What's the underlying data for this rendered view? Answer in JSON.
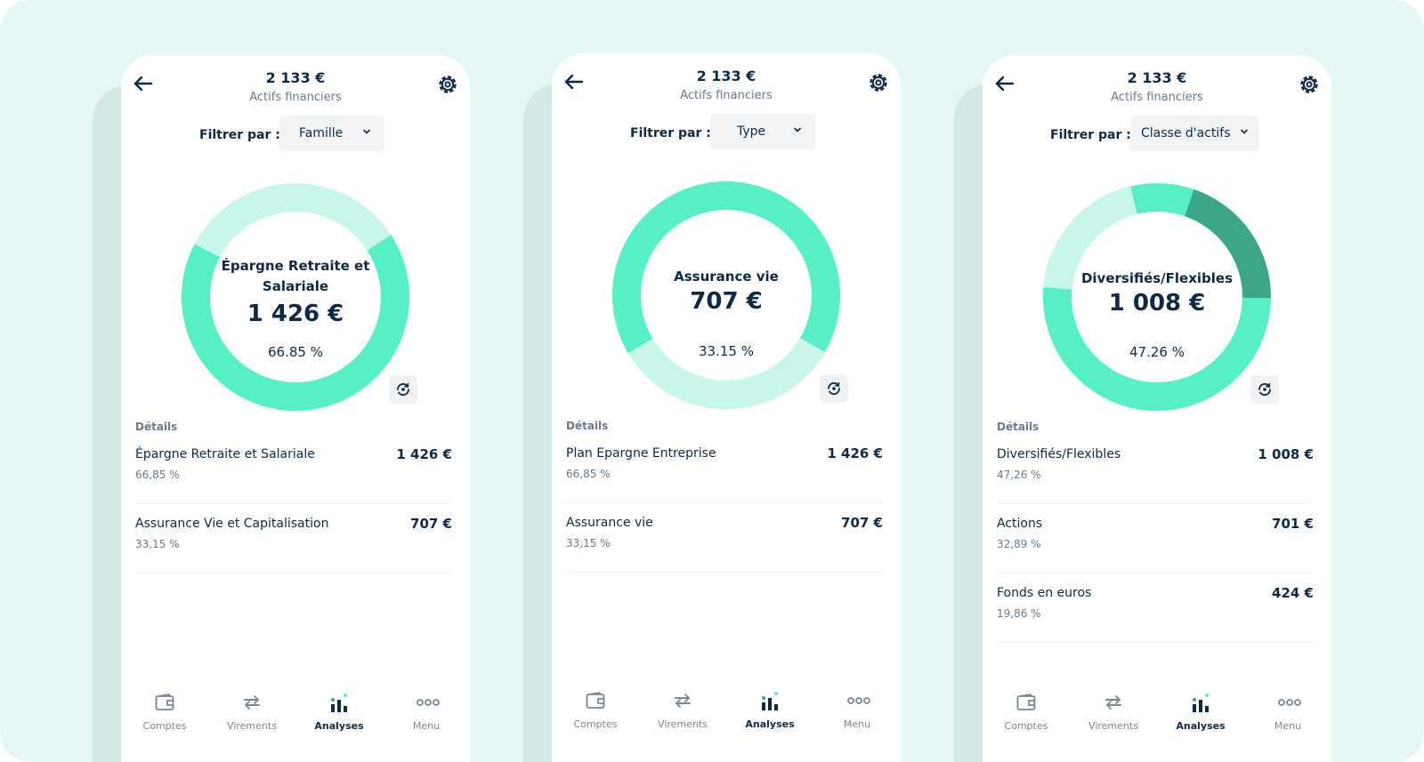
{
  "screens": [
    {
      "header": {
        "total": "2 133 €",
        "subtitle": "Actifs financiers"
      },
      "filter": {
        "label": "Filtrer par :",
        "value": "Famille"
      },
      "center": {
        "name": "Épargne Retraite et Salariale",
        "value": "1 426 €",
        "percent": "66.85 %"
      },
      "details_title": "Détails",
      "details": [
        {
          "name": "Épargne Retraite et Salariale",
          "percent": "66,85 %",
          "value": "1 426 €"
        },
        {
          "name": "Assurance Vie et Capitalisation",
          "percent": "33,15 %",
          "value": "707 €"
        }
      ]
    },
    {
      "header": {
        "total": "2 133 €",
        "subtitle": "Actifs financiers"
      },
      "filter": {
        "label": "Filtrer par :",
        "value": "Type"
      },
      "center": {
        "name": "Assurance vie",
        "value": "707 €",
        "percent": "33.15 %"
      },
      "details_title": "Détails",
      "details": [
        {
          "name": "Plan Epargne Entreprise",
          "percent": "66,85 %",
          "value": "1 426 €"
        },
        {
          "name": "Assurance vie",
          "percent": "33,15 %",
          "value": "707 €"
        }
      ]
    },
    {
      "header": {
        "total": "2 133 €",
        "subtitle": "Actifs financiers"
      },
      "filter": {
        "label": "Filtrer par :",
        "value": "Classe d'actifs"
      },
      "center": {
        "name": "Diversifiés/Flexibles",
        "value": "1 008 €",
        "percent": "47.26 %"
      },
      "details_title": "Détails",
      "details": [
        {
          "name": "Diversifiés/Flexibles",
          "percent": "47,26 %",
          "value": "1 008 €"
        },
        {
          "name": "Actions",
          "percent": "32,89 %",
          "value": "701 €"
        },
        {
          "name": "Fonds en euros",
          "percent": "19,86 %",
          "value": "424 €"
        }
      ]
    }
  ],
  "nav": [
    {
      "label": "Comptes",
      "icon": "wallet-icon"
    },
    {
      "label": "Virements",
      "icon": "transfer-arrows-icon"
    },
    {
      "label": "Analyses",
      "icon": "analyses-chart-icon",
      "active": true
    },
    {
      "label": "Menu",
      "icon": "more-dots-icon"
    }
  ],
  "colors": {
    "background": "#e4f7f4",
    "accent": "#57efc6",
    "accent_light": "#c8f6ea",
    "accent_dark": "#3ea688",
    "text": "#0f2a44",
    "muted": "#6b7a8c"
  }
}
